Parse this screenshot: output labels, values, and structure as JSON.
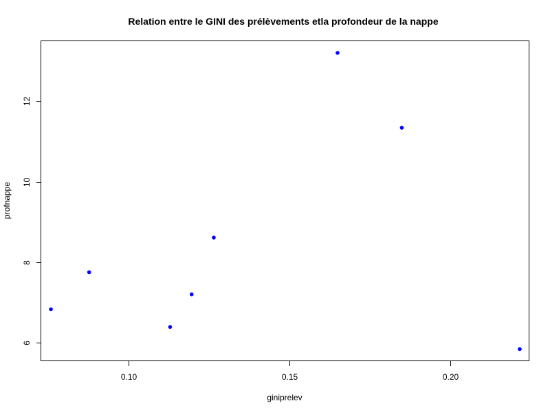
{
  "chart_data": {
    "type": "scatter",
    "title": "Relation entre le GINI des prélèvements etla profondeur de la nappe",
    "xlabel": "giniprelev",
    "ylabel": "profnappe",
    "xlim": [
      0.0728,
      0.2247
    ],
    "ylim": [
      5.54,
      13.49
    ],
    "xticks": [
      {
        "value": 0.1,
        "label": "0.10"
      },
      {
        "value": 0.15,
        "label": "0.15"
      },
      {
        "value": 0.2,
        "label": "0.20"
      }
    ],
    "yticks": [
      {
        "value": 6,
        "label": "6"
      },
      {
        "value": 8,
        "label": "8"
      },
      {
        "value": 10,
        "label": "10"
      },
      {
        "value": 12,
        "label": "12"
      }
    ],
    "grid": false,
    "point_color": "#0000ff",
    "points": [
      {
        "x": 0.0758,
        "y": 6.83
      },
      {
        "x": 0.0877,
        "y": 7.75
      },
      {
        "x": 0.1129,
        "y": 6.39
      },
      {
        "x": 0.1196,
        "y": 7.2
      },
      {
        "x": 0.1265,
        "y": 8.61
      },
      {
        "x": 0.165,
        "y": 13.2
      },
      {
        "x": 0.185,
        "y": 11.34
      },
      {
        "x": 0.2217,
        "y": 5.84
      }
    ]
  }
}
